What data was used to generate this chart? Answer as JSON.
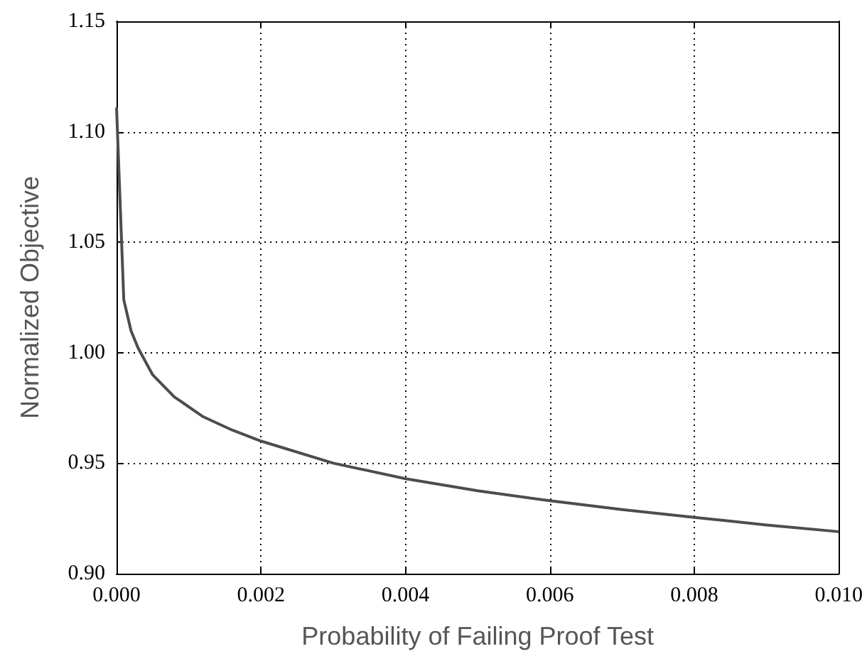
{
  "chart_data": {
    "type": "line",
    "xlabel": "Probability of Failing Proof Test",
    "ylabel": "Normalized Objective",
    "x": [
      0,
      0.0001,
      0.0002,
      0.0003,
      0.0005,
      0.0008,
      0.0012,
      0.0016,
      0.002,
      0.003,
      0.004,
      0.005,
      0.006,
      0.007,
      0.008,
      0.009,
      0.01
    ],
    "series": [
      {
        "color": "#4d4d4d",
        "values": [
          1.111,
          1.024,
          1.01,
          1.002,
          0.99,
          0.98,
          0.971,
          0.965,
          0.96,
          0.95,
          0.943,
          0.9375,
          0.933,
          0.929,
          0.9255,
          0.922,
          0.919
        ]
      }
    ],
    "xlim": [
      0,
      0.01
    ],
    "xticks": [
      {
        "value": 0,
        "label": "0.000"
      },
      {
        "value": 0.002,
        "label": "0.002"
      },
      {
        "value": 0.004,
        "label": "0.004"
      },
      {
        "value": 0.006,
        "label": "0.006"
      },
      {
        "value": 0.008,
        "label": "0.008"
      },
      {
        "value": 0.01,
        "label": "0.010"
      }
    ],
    "ylim": [
      0.9,
      1.15
    ],
    "yticks": [
      {
        "value": 0.9,
        "label": "0.90"
      },
      {
        "value": 0.95,
        "label": "0.95"
      },
      {
        "value": 1,
        "label": "1.00"
      },
      {
        "value": 1.05,
        "label": "1.05"
      },
      {
        "value": 1.1,
        "label": "1.10"
      },
      {
        "value": 1.15,
        "label": "1.15"
      }
    ],
    "grid": true,
    "marker": "none",
    "line_style": "solid"
  }
}
